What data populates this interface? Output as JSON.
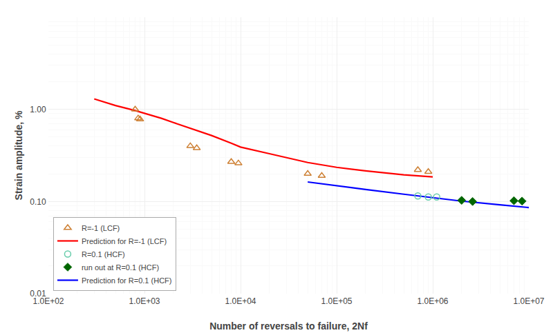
{
  "chart_data": {
    "type": "line",
    "xlabel": "Number of reversals to failure, 2Nf",
    "ylabel": "Strain amplitude, %",
    "log": true,
    "grid": true,
    "legend": "lower left",
    "xlim": [
      100,
      10000000
    ],
    "ylim": [
      0.01,
      10
    ],
    "xticks": [
      {
        "value": 100,
        "label": "1.0E+02"
      },
      {
        "value": 1000,
        "label": "1.0E+03"
      },
      {
        "value": 10000,
        "label": "1.0E+04"
      },
      {
        "value": 100000,
        "label": "1.0E+05"
      },
      {
        "value": 1000000,
        "label": "1.0E+06"
      },
      {
        "value": 10000000,
        "label": "1.0E+07"
      }
    ],
    "yticks": [
      0.01,
      {
        "value": 0.1,
        "label": "0.10"
      },
      {
        "value": 1,
        "label": "1.00"
      }
    ],
    "series": [
      {
        "name": "R=-1 (LCF)",
        "type": "scatter",
        "marker": "triangle-up-open",
        "color": "#CD7F32",
        "x": [
          800,
          860,
          900,
          3000,
          3500,
          8000,
          9500,
          50000,
          70000,
          700000,
          900000
        ],
        "values": [
          1.0,
          0.8,
          0.78,
          0.4,
          0.38,
          0.27,
          0.26,
          0.2,
          0.19,
          0.22,
          0.21
        ]
      },
      {
        "name": "Prediction for R=-1 (LCF)",
        "type": "line",
        "line_style": "solid",
        "color": "#FF0000",
        "x": [
          300,
          500,
          800,
          1000,
          1500,
          2000,
          3000,
          5000,
          8000,
          10000,
          20000,
          50000,
          100000,
          200000,
          500000,
          1000000
        ],
        "values": [
          1.3,
          1.1,
          0.97,
          0.91,
          0.8,
          0.72,
          0.62,
          0.52,
          0.43,
          0.39,
          0.33,
          0.265,
          0.235,
          0.215,
          0.195,
          0.185
        ]
      },
      {
        "name": "R=0.1 (HCF)",
        "type": "scatter",
        "marker": "circle-open",
        "color": "#66CCAA",
        "x": [
          700000,
          900000,
          1100000
        ],
        "values": [
          0.115,
          0.112,
          0.112
        ]
      },
      {
        "name": "run out at R=0.1 (HCF)",
        "type": "scatter",
        "marker": "diamond",
        "color": "#006600",
        "x": [
          2000000,
          2600000,
          7000000,
          8500000
        ],
        "values": [
          0.103,
          0.1,
          0.102,
          0.101
        ]
      },
      {
        "name": "Prediction for R=0.1 (HCF)",
        "type": "line",
        "line_style": "solid",
        "color": "#0000FF",
        "x": [
          50000,
          100000,
          200000,
          500000,
          1000000,
          2000000,
          5000000,
          10000000
        ],
        "values": [
          0.163,
          0.148,
          0.135,
          0.12,
          0.11,
          0.101,
          0.092,
          0.086
        ]
      }
    ]
  }
}
